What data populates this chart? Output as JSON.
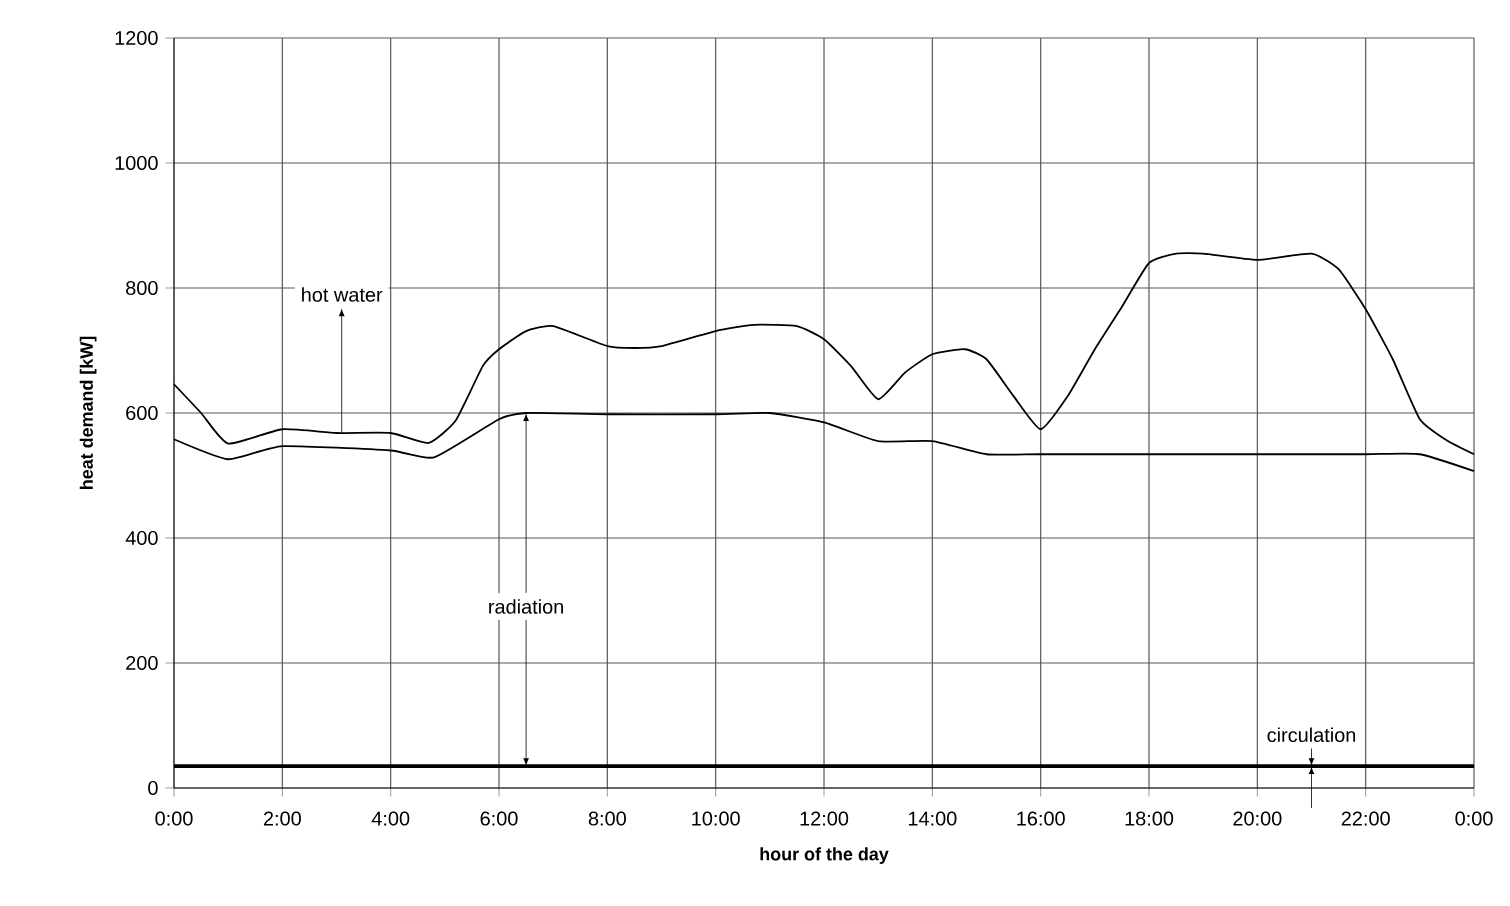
{
  "chart_data": {
    "type": "line",
    "xlabel": "hour of the day",
    "ylabel": "heat demand [kW]",
    "xlim": [
      0,
      24
    ],
    "ylim": [
      0,
      1200
    ],
    "xticks": [
      {
        "value": 0,
        "label": "0:00"
      },
      {
        "value": 2,
        "label": "2:00"
      },
      {
        "value": 4,
        "label": "4:00"
      },
      {
        "value": 6,
        "label": "6:00"
      },
      {
        "value": 8,
        "label": "8:00"
      },
      {
        "value": 10,
        "label": "10:00"
      },
      {
        "value": 12,
        "label": "12:00"
      },
      {
        "value": 14,
        "label": "14:00"
      },
      {
        "value": 16,
        "label": "16:00"
      },
      {
        "value": 18,
        "label": "18:00"
      },
      {
        "value": 20,
        "label": "20:00"
      },
      {
        "value": 22,
        "label": "22:00"
      },
      {
        "value": 24,
        "label": "0:00"
      }
    ],
    "yticks": [
      0,
      200,
      400,
      600,
      800,
      1000,
      1200
    ],
    "grid": true,
    "marker": "none",
    "line_style": "solid",
    "series": [
      {
        "color": "#000000",
        "x": [
          0,
          0.5,
          1,
          2,
          3,
          4,
          4.7,
          5.2,
          5.7,
          6,
          6.5,
          7,
          8,
          8.5,
          9,
          10,
          10.7,
          11.5,
          12,
          12.5,
          13,
          13.5,
          14,
          14.6,
          15,
          15.5,
          16,
          16.5,
          17,
          17.5,
          18,
          18.5,
          19,
          20,
          21,
          21.5,
          22,
          22.5,
          23,
          23.5,
          24
        ],
        "values": [
          646,
          600,
          551,
          574,
          568,
          568,
          552,
          588,
          675,
          702,
          731,
          739,
          707,
          704,
          707,
          731,
          741,
          739,
          718,
          675,
          622,
          665,
          694,
          702,
          686,
          627,
          574,
          627,
          702,
          770,
          840,
          855,
          855,
          845,
          855,
          830,
          766,
          686,
          590,
          556,
          534
        ]
      },
      {
        "color": "#000000",
        "x": [
          0,
          1,
          2,
          4,
          4.8,
          6,
          6.5,
          8,
          10,
          11,
          12,
          13,
          14,
          15,
          16,
          18,
          20,
          22,
          23,
          24
        ],
        "values": [
          558,
          526,
          547,
          540,
          529,
          590,
          600,
          598,
          598,
          600,
          585,
          555,
          555,
          534,
          534,
          534,
          534,
          534,
          534,
          507
        ]
      }
    ],
    "ref_lines": [
      {
        "axis": "y",
        "value": 35,
        "color": "#000000"
      }
    ],
    "annotations": [
      "hot water",
      {
        "text": "radiation",
        "x": 6.5,
        "y": 600
      },
      "circulation"
    ]
  }
}
